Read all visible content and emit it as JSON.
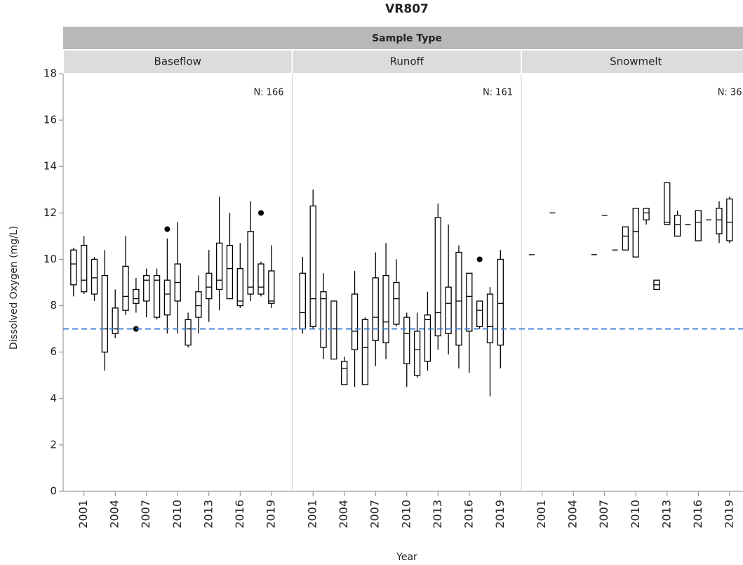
{
  "chart_data": {
    "type": "box",
    "title": "VR807",
    "facet_label": "Sample Type",
    "y_label": "Dissolved Oxygen (mg/L)",
    "x_label": "Year",
    "ylim": [
      0,
      18
    ],
    "yticks": [
      0,
      2,
      4,
      6,
      8,
      10,
      12,
      14,
      16,
      18
    ],
    "xlim": [
      1999,
      2021
    ],
    "xticks": [
      2001,
      2004,
      2007,
      2010,
      2013,
      2016,
      2019
    ],
    "reference_line": 7,
    "reference_color": "#3a7bd5",
    "box_color": "#000000",
    "panels": [
      {
        "name": "Baseflow",
        "n_label": "N: 166",
        "boxes": [
          {
            "x": 2000,
            "min": 8.4,
            "q1": 8.9,
            "median": 9.8,
            "q3": 10.4,
            "max": 10.5,
            "outliers": []
          },
          {
            "x": 2001,
            "min": 8.5,
            "q1": 8.6,
            "median": 9.1,
            "q3": 10.6,
            "max": 11,
            "outliers": []
          },
          {
            "x": 2002,
            "min": 8.2,
            "q1": 8.5,
            "median": 9.2,
            "q3": 10,
            "max": 10.1,
            "outliers": []
          },
          {
            "x": 2003,
            "min": 5.2,
            "q1": 6,
            "median": 7,
            "q3": 9.3,
            "max": 10.4,
            "outliers": []
          },
          {
            "x": 2004,
            "min": 6.6,
            "q1": 6.8,
            "median": 7,
            "q3": 7.9,
            "max": 8.7,
            "outliers": []
          },
          {
            "x": 2005,
            "min": 7.6,
            "q1": 7.8,
            "median": 8.4,
            "q3": 9.7,
            "max": 11,
            "outliers": []
          },
          {
            "x": 2006,
            "min": 7.7,
            "q1": 8.1,
            "median": 8.3,
            "q3": 8.7,
            "max": 9.2,
            "outliers": [
              7
            ]
          },
          {
            "x": 2007,
            "min": 7.5,
            "q1": 8.2,
            "median": 9.1,
            "q3": 9.3,
            "max": 9.6,
            "outliers": []
          },
          {
            "x": 2008,
            "min": 7.4,
            "q1": 7.5,
            "median": 9.1,
            "q3": 9.3,
            "max": 9.6,
            "outliers": []
          },
          {
            "x": 2009,
            "min": 6.8,
            "q1": 7.6,
            "median": 8.5,
            "q3": 9.1,
            "max": 10.9,
            "outliers": [
              11.3
            ]
          },
          {
            "x": 2010,
            "min": 6.8,
            "q1": 8.2,
            "median": 9,
            "q3": 9.8,
            "max": 11.6,
            "outliers": []
          },
          {
            "x": 2011,
            "min": 6.2,
            "q1": 6.3,
            "median": 7,
            "q3": 7.4,
            "max": 7.7,
            "outliers": []
          },
          {
            "x": 2012,
            "min": 6.8,
            "q1": 7.5,
            "median": 8,
            "q3": 8.6,
            "max": 9.3,
            "outliers": []
          },
          {
            "x": 2013,
            "min": 7.3,
            "q1": 8.3,
            "median": 8.8,
            "q3": 9.4,
            "max": 10.4,
            "outliers": []
          },
          {
            "x": 2014,
            "min": 7.8,
            "q1": 8.7,
            "median": 9.1,
            "q3": 10.7,
            "max": 12.7,
            "outliers": []
          },
          {
            "x": 2015,
            "min": 8.3,
            "q1": 8.3,
            "median": 9.6,
            "q3": 10.6,
            "max": 12,
            "outliers": []
          },
          {
            "x": 2016,
            "min": 7.9,
            "q1": 8,
            "median": 8.2,
            "q3": 9.6,
            "max": 10.7,
            "outliers": []
          },
          {
            "x": 2017,
            "min": 8.2,
            "q1": 8.5,
            "median": 8.8,
            "q3": 11.2,
            "max": 12.5,
            "outliers": []
          },
          {
            "x": 2018,
            "min": 8.4,
            "q1": 8.5,
            "median": 8.8,
            "q3": 9.8,
            "max": 9.9,
            "outliers": [
              12
            ]
          },
          {
            "x": 2019,
            "min": 7.9,
            "q1": 8.1,
            "median": 8.2,
            "q3": 9.5,
            "max": 10.6,
            "outliers": []
          }
        ]
      },
      {
        "name": "Runoff",
        "n_label": "N: 161",
        "boxes": [
          {
            "x": 2000,
            "min": 6.8,
            "q1": 7,
            "median": 7.7,
            "q3": 9.4,
            "max": 10.1,
            "outliers": []
          },
          {
            "x": 2001,
            "min": 7,
            "q1": 7.1,
            "median": 8.3,
            "q3": 12.3,
            "max": 13,
            "outliers": []
          },
          {
            "x": 2002,
            "min": 5.7,
            "q1": 6.2,
            "median": 8.3,
            "q3": 8.6,
            "max": 9.4,
            "outliers": []
          },
          {
            "x": 2003,
            "min": 5.7,
            "q1": 5.7,
            "median": 7,
            "q3": 8.2,
            "max": 8.2,
            "outliers": []
          },
          {
            "x": 2004,
            "min": 4.6,
            "q1": 4.6,
            "median": 5.3,
            "q3": 5.6,
            "max": 5.8,
            "outliers": []
          },
          {
            "x": 2005,
            "min": 4.5,
            "q1": 6.1,
            "median": 6.9,
            "q3": 8.5,
            "max": 9.5,
            "outliers": []
          },
          {
            "x": 2006,
            "min": 4.6,
            "q1": 4.6,
            "median": 6.2,
            "q3": 7.4,
            "max": 7.5,
            "outliers": []
          },
          {
            "x": 2007,
            "min": 5.4,
            "q1": 6.5,
            "median": 7.5,
            "q3": 9.2,
            "max": 10.3,
            "outliers": []
          },
          {
            "x": 2008,
            "min": 5.7,
            "q1": 6.4,
            "median": 7.3,
            "q3": 9.3,
            "max": 10.7,
            "outliers": []
          },
          {
            "x": 2009,
            "min": 7.1,
            "q1": 7.2,
            "median": 8.3,
            "q3": 9,
            "max": 10,
            "outliers": []
          },
          {
            "x": 2010,
            "min": 4.5,
            "q1": 5.5,
            "median": 6.8,
            "q3": 7.5,
            "max": 7.7,
            "outliers": []
          },
          {
            "x": 2011,
            "min": 4.9,
            "q1": 5,
            "median": 6.1,
            "q3": 6.9,
            "max": 7.7,
            "outliers": []
          },
          {
            "x": 2012,
            "min": 5.2,
            "q1": 5.6,
            "median": 7.4,
            "q3": 7.6,
            "max": 8.6,
            "outliers": []
          },
          {
            "x": 2013,
            "min": 6.1,
            "q1": 6.7,
            "median": 7.7,
            "q3": 11.8,
            "max": 12.4,
            "outliers": []
          },
          {
            "x": 2014,
            "min": 5.9,
            "q1": 6.8,
            "median": 8.1,
            "q3": 8.8,
            "max": 11.5,
            "outliers": []
          },
          {
            "x": 2015,
            "min": 5.3,
            "q1": 6.3,
            "median": 8.2,
            "q3": 10.3,
            "max": 10.6,
            "outliers": []
          },
          {
            "x": 2016,
            "min": 5.1,
            "q1": 6.9,
            "median": 8.4,
            "q3": 9.4,
            "max": 9.4,
            "outliers": []
          },
          {
            "x": 2017,
            "min": 7,
            "q1": 7.1,
            "median": 7.8,
            "q3": 8.2,
            "max": 8.2,
            "outliers": [
              10
            ]
          },
          {
            "x": 2018,
            "min": 4.1,
            "q1": 6.4,
            "median": 7.1,
            "q3": 8.5,
            "max": 8.8,
            "outliers": []
          },
          {
            "x": 2019,
            "min": 5.3,
            "q1": 6.3,
            "median": 8.1,
            "q3": 10,
            "max": 10.4,
            "outliers": []
          }
        ]
      },
      {
        "name": "Snowmelt",
        "n_label": "N: 36",
        "boxes": [
          {
            "x": 2000,
            "min": 10.2,
            "q1": 10.2,
            "median": 10.2,
            "q3": 10.2,
            "max": 10.2,
            "outliers": []
          },
          {
            "x": 2002,
            "min": 12,
            "q1": 12,
            "median": 12,
            "q3": 12,
            "max": 12,
            "outliers": []
          },
          {
            "x": 2006,
            "min": 10.2,
            "q1": 10.2,
            "median": 10.2,
            "q3": 10.2,
            "max": 10.2,
            "outliers": []
          },
          {
            "x": 2007,
            "min": 11.9,
            "q1": 11.9,
            "median": 11.9,
            "q3": 11.9,
            "max": 11.9,
            "outliers": []
          },
          {
            "x": 2008,
            "min": 10.4,
            "q1": 10.4,
            "median": 10.4,
            "q3": 10.4,
            "max": 10.4,
            "outliers": []
          },
          {
            "x": 2009,
            "min": 10.4,
            "q1": 10.4,
            "median": 11,
            "q3": 11.4,
            "max": 11.4,
            "outliers": []
          },
          {
            "x": 2010,
            "min": 10.1,
            "q1": 10.1,
            "median": 11.2,
            "q3": 12.2,
            "max": 12.2,
            "outliers": []
          },
          {
            "x": 2011,
            "min": 11.5,
            "q1": 11.7,
            "median": 12,
            "q3": 12.2,
            "max": 12.2,
            "outliers": []
          },
          {
            "x": 2012,
            "min": 8.7,
            "q1": 8.7,
            "median": 8.9,
            "q3": 9.1,
            "max": 9.1,
            "outliers": []
          },
          {
            "x": 2013,
            "min": 11.5,
            "q1": 11.5,
            "median": 11.6,
            "q3": 13.3,
            "max": 13.3,
            "outliers": []
          },
          {
            "x": 2014,
            "min": 11,
            "q1": 11,
            "median": 11.5,
            "q3": 11.9,
            "max": 12.1,
            "outliers": []
          },
          {
            "x": 2015,
            "min": 11.5,
            "q1": 11.5,
            "median": 11.5,
            "q3": 11.5,
            "max": 11.5,
            "outliers": []
          },
          {
            "x": 2016,
            "min": 10.8,
            "q1": 10.8,
            "median": 11.6,
            "q3": 12.1,
            "max": 12.1,
            "outliers": []
          },
          {
            "x": 2017,
            "min": 11.7,
            "q1": 11.7,
            "median": 11.7,
            "q3": 11.7,
            "max": 11.7,
            "outliers": []
          },
          {
            "x": 2018,
            "min": 10.7,
            "q1": 11.1,
            "median": 11.7,
            "q3": 12.2,
            "max": 12.5,
            "outliers": []
          },
          {
            "x": 2019,
            "min": 10.7,
            "q1": 10.8,
            "median": 11.6,
            "q3": 12.6,
            "max": 12.7,
            "outliers": []
          }
        ]
      }
    ]
  }
}
